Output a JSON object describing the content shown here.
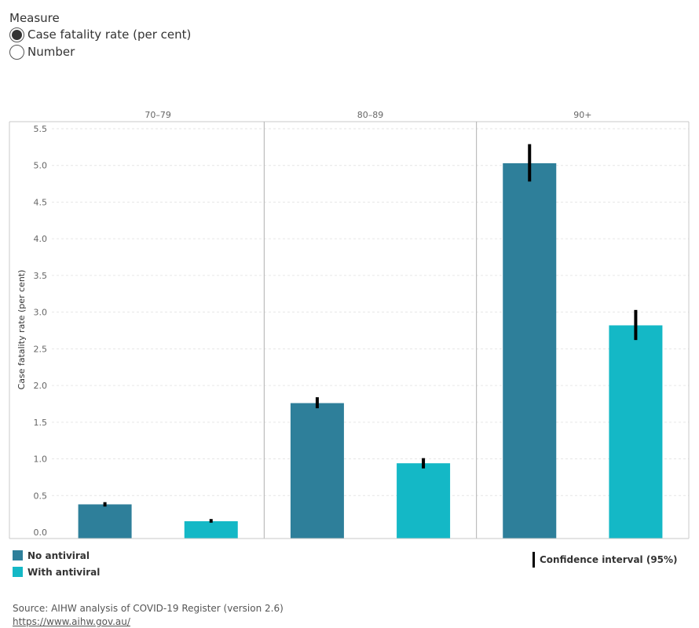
{
  "measure": {
    "title": "Measure",
    "options": [
      {
        "label": "Case fatality rate (per cent)",
        "selected": true
      },
      {
        "label": "Number",
        "selected": false
      }
    ]
  },
  "chart_data": {
    "type": "bar",
    "panels": [
      "70–79",
      "80–89",
      "90+"
    ],
    "series": [
      {
        "name": "No antiviral",
        "color": "#2e7f9a",
        "values": [
          0.38,
          1.76,
          5.03
        ],
        "ci_low": [
          0.35,
          1.69,
          4.78
        ],
        "ci_high": [
          0.41,
          1.84,
          5.29
        ]
      },
      {
        "name": "With antiviral",
        "color": "#14b8c6",
        "values": [
          0.15,
          0.94,
          2.82
        ],
        "ci_low": [
          0.13,
          0.87,
          2.62
        ],
        "ci_high": [
          0.18,
          1.01,
          3.03
        ]
      }
    ],
    "ylabel": "Case fatality rate (per cent)",
    "ylim": [
      0,
      5.5
    ],
    "yticks": [
      "0.0",
      "0.5",
      "1.0",
      "1.5",
      "2.0",
      "2.5",
      "3.0",
      "3.5",
      "4.0",
      "4.5",
      "5.0",
      "5.5"
    ],
    "grid": true,
    "legend_position": "bottom-left"
  },
  "ci_legend": "Confidence interval (95%)",
  "source": {
    "text": "Source: AIHW analysis of COVID-19 Register (version 2.6)",
    "link": "https://www.aihw.gov.au/"
  }
}
